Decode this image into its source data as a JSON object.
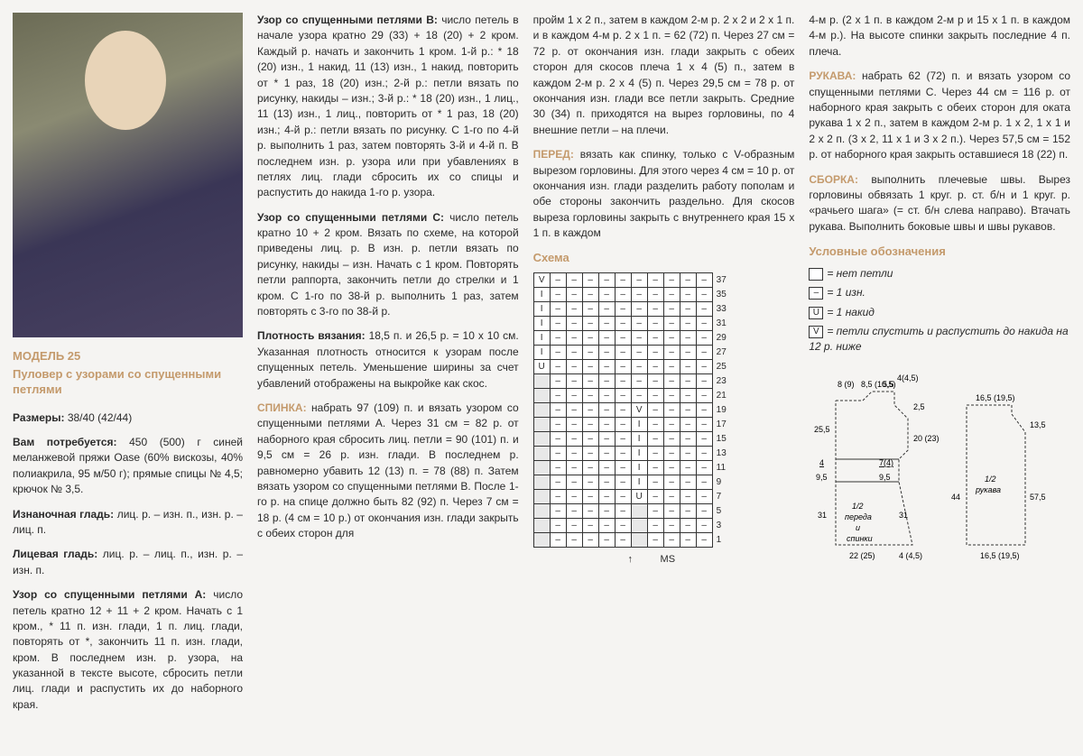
{
  "model": {
    "number": "МОДЕЛЬ 25",
    "name": "Пуловер с узорами со спущенными петлями"
  },
  "sizes_label": "Размеры:",
  "sizes": "38/40 (42/44)",
  "materials_label": "Вам потребуется:",
  "materials": "450 (500) г синей меланжевой пряжи Oase (60% вискозы, 40% полиакрила, 95 м/50 г); прямые спицы № 4,5; крючок № 3,5.",
  "purl_label": "Изнаночная гладь:",
  "purl": "лиц. р. – изн. п., изн. р. – лиц. п.",
  "knit_label": "Лицевая гладь:",
  "knit": "лиц. р. – лиц. п., изн. р. – изн. п.",
  "patA_label": "Узор со спущенными петлями А:",
  "patA": "число петель кратно 12 + 11 + 2 кром. Начать с 1 кром., * 11 п. изн. глади, 1 п. лиц. глади, повторять от *, закончить 11 п. изн. глади, кром. В последнем изн. р. узора, на указанной в тексте высоте, сбросить петли лиц. глади и распустить их до наборного края.",
  "patB_label": "Узор со спущенными петлями В:",
  "patB": "число петель в начале узора кратно 29 (33) + 18 (20) + 2 кром. Каждый р. начать и закончить 1 кром. 1-й р.: * 18 (20) изн., 1 накид, 11 (13) изн., 1 накид, повторить от * 1 раз, 18 (20) изн.; 2-й р.: петли вязать по рисунку, накиды – изн.; 3-й р.: * 18 (20) изн., 1 лиц., 11 (13) изн., 1 лиц., повторить от * 1 раз, 18 (20) изн.; 4-й р.: петли вязать по рисунку. С 1-го по 4-й р. выполнить 1 раз, затем повторять 3-й и 4-й п. В последнем изн. р. узора или при убавлениях в петлях лиц. глади сбросить их со спицы и распустить до накида 1-го р. узора.",
  "patC_label": "Узор со спущенными петлями С:",
  "patC": "число петель кратно 10 + 2 кром. Вязать по схеме, на которой приведены лиц. р. В изн. р. петли вязать по рисунку, накиды – изн. Начать с 1 кром. Повторять петли раппорта, закончить петли до стрелки и 1 кром. С 1-го по 38-й р. выполнить 1 раз, затем повторять с 3-го по 38-й р.",
  "gauge_label": "Плотность вязания:",
  "gauge": "18,5 п. и 26,5 р. = 10 х 10 см. Указанная плотность относится к узорам после спущенных петель. Уменьшение ширины за счет убавлений отображены на выкройке как скос.",
  "back_label": "СПИНКА:",
  "back": "набрать 97 (109) п. и вязать узором со спущенными петлями А. Через 31 см = 82 р. от наборного края сбросить лиц. петли = 90 (101) п. и 9,5 см = 26 р. изн. глади. В последнем р. равномерно убавить 12 (13) п. = 78 (88) п. Затем вязать узором со спущенными петлями В. После 1-го р. на спице должно быть 82 (92) п. Через 7 см = 18 р. (4 см = 10 р.) от окончания изн. глади закрыть с обеих сторон для",
  "col3_p1": "пройм 1 х 2 п., затем в каждом 2-м р. 2 х 2 и 2 х 1 п. и в каждом 4-м р. 2 х 1 п. = 62 (72) п. Через 27 см = 72 р. от окончания изн. глади закрыть с обеих сторон для скосов плеча 1 х 4 (5) п., затем в каждом 2-м р. 2 х 4 (5) п. Через 29,5 см = 78 р. от окончания изн. глади все петли закрыть. Средние 30 (34) п. приходятся на вырез горловины, по 4 внешние петли – на плечи.",
  "front_label": "ПЕРЕД:",
  "front": "вязать как спинку, только с V-образным вырезом горловины. Для этого через 4 см = 10 р. от окончания изн. глади разделить работу пополам и обе стороны закончить раздельно. Для скосов выреза горловины закрыть с внутреннего края 15 х 1 п. в каждом",
  "col4_p1": "4-м р. (2 х 1 п. в каждом 2-м р и 15 х 1 п. в каждом 4-м р.). На высоте спинки закрыть последние 4 п. плеча.",
  "sleeves_label": "РУКАВА:",
  "sleeves": "набрать 62 (72) п. и вязать узором со спущенными петлями С. Через 44 см = 116 р. от наборного края закрыть с обеих сторон для оката рукава 1 х 2 п., затем в каждом 2-м р. 1 х 2, 1 х 1 и 2 х 2 п. (3 х 2, 11 х 1 и 3 х 2 п.). Через 57,5 см = 152 р. от наборного края закрыть оставшиеся 18 (22) п.",
  "assembly_label": "СБОРКА:",
  "assembly": "выполнить плечевые швы. Вырез горловины обвязать 1 круг. р. ст. б/н и 1 круг. р. «рачьего шага» (= ст. б/н слева направо). Втачать рукава. Выполнить боковые швы и швы рукавов.",
  "schema_title": "Схема",
  "legend_title": "Условные обозначения",
  "legend": {
    "empty": "= нет петли",
    "dash": "= 1 изн.",
    "u": "= 1 накид",
    "v": "= петли спустить и распустить до накида на 12 р. ниже"
  },
  "chart": {
    "rows": 19,
    "cols": 11,
    "row_labels": [
      "37",
      "35",
      "33",
      "31",
      "29",
      "27",
      "25",
      "23",
      "21",
      "19",
      "17",
      "15",
      "13",
      "11",
      "9",
      "7",
      "5",
      "3",
      "1"
    ],
    "symbols": {
      "dash": "–",
      "u": "U",
      "v": "V",
      "i": "I"
    },
    "grid": [
      [
        "v",
        "–",
        "–",
        "–",
        "–",
        "–",
        "–",
        "–",
        "–",
        "–",
        "–"
      ],
      [
        "i",
        "–",
        "–",
        "–",
        "–",
        "–",
        "–",
        "–",
        "–",
        "–",
        "–"
      ],
      [
        "i",
        "–",
        "–",
        "–",
        "–",
        "–",
        "–",
        "–",
        "–",
        "–",
        "–"
      ],
      [
        "i",
        "–",
        "–",
        "–",
        "–",
        "–",
        "–",
        "–",
        "–",
        "–",
        "–"
      ],
      [
        "i",
        "–",
        "–",
        "–",
        "–",
        "–",
        "–",
        "–",
        "–",
        "–",
        "–"
      ],
      [
        "i",
        "–",
        "–",
        "–",
        "–",
        "–",
        "–",
        "–",
        "–",
        "–",
        "–"
      ],
      [
        "u",
        "–",
        "–",
        "–",
        "–",
        "–",
        "–",
        "–",
        "–",
        "–",
        "–"
      ],
      [
        "",
        "–",
        "–",
        "–",
        "–",
        "–",
        "–",
        "–",
        "–",
        "–",
        "–"
      ],
      [
        "",
        "–",
        "–",
        "–",
        "–",
        "–",
        "–",
        "–",
        "–",
        "–",
        "–"
      ],
      [
        "",
        "–",
        "–",
        "–",
        "–",
        "–",
        "v",
        "–",
        "–",
        "–",
        "–"
      ],
      [
        "",
        "–",
        "–",
        "–",
        "–",
        "–",
        "i",
        "–",
        "–",
        "–",
        "–"
      ],
      [
        "",
        "–",
        "–",
        "–",
        "–",
        "–",
        "i",
        "–",
        "–",
        "–",
        "–"
      ],
      [
        "",
        "–",
        "–",
        "–",
        "–",
        "–",
        "i",
        "–",
        "–",
        "–",
        "–"
      ],
      [
        "",
        "–",
        "–",
        "–",
        "–",
        "–",
        "i",
        "–",
        "–",
        "–",
        "–"
      ],
      [
        "",
        "–",
        "–",
        "–",
        "–",
        "–",
        "i",
        "–",
        "–",
        "–",
        "–"
      ],
      [
        "",
        "–",
        "–",
        "–",
        "–",
        "–",
        "u",
        "–",
        "–",
        "–",
        "–"
      ],
      [
        "",
        "–",
        "–",
        "–",
        "–",
        "–",
        "",
        "–",
        "–",
        "–",
        "–"
      ],
      [
        "",
        "–",
        "–",
        "–",
        "–",
        "–",
        "",
        "–",
        "–",
        "–",
        "–"
      ],
      [
        "",
        "–",
        "–",
        "–",
        "–",
        "–",
        "",
        "–",
        "–",
        "–",
        "–"
      ]
    ],
    "ms_label": "MS"
  },
  "schematic": {
    "body": {
      "top_labels": [
        "8 (9)",
        "8,5 (10,5)",
        "5,5",
        "4(4,5)"
      ],
      "right_top": "2,5",
      "right_mid": "20 (23)",
      "left_top": "25,5",
      "left_mid": "4",
      "left_bot": "9,5",
      "inner_mid": "7(4)",
      "inner_bot": "9,5",
      "height": "31",
      "label": "1/2 переда и спинки",
      "width": "22 (25)",
      "width_r": "4 (4,5)"
    },
    "sleeve": {
      "top": "16,5 (19,5)",
      "right_top": "13,5",
      "label": "1/2 рукава",
      "height_l": "44",
      "height_r": "57,5",
      "width": "16,5 (19,5)"
    }
  }
}
